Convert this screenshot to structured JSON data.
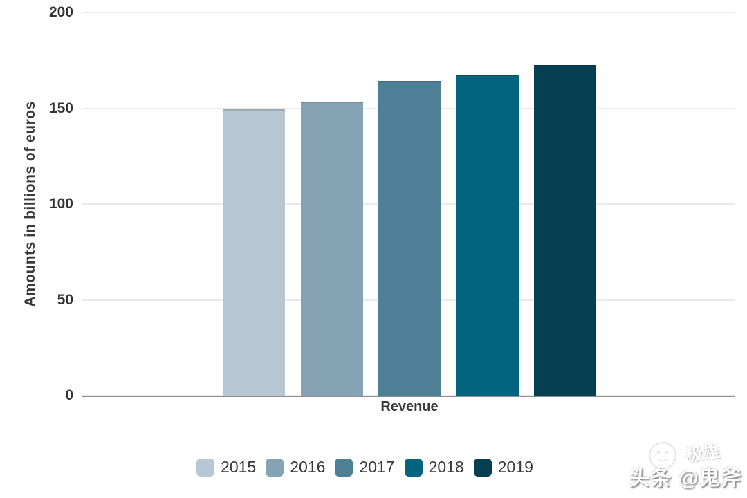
{
  "chart_data": {
    "type": "bar",
    "title": "",
    "xlabel": "Revenue",
    "ylabel": "Amounts in billions of euros",
    "ylim": [
      0,
      200
    ],
    "yticks": [
      0,
      50,
      100,
      150,
      200
    ],
    "grid": true,
    "legend_position": "bottom",
    "categories": [
      "Revenue"
    ],
    "series": [
      {
        "name": "2015",
        "value": 149.5,
        "color": "#b7c7d3"
      },
      {
        "name": "2016",
        "value": 153.3,
        "color": "#85a3b5"
      },
      {
        "name": "2017",
        "value": 164.3,
        "color": "#4d8096"
      },
      {
        "name": "2018",
        "value": 167.4,
        "color": "#02647f"
      },
      {
        "name": "2019",
        "value": 172.7,
        "color": "#053f51"
      }
    ]
  },
  "colors": {
    "axis_line": "#8f8f8f",
    "gridline": "#eaeaea",
    "text": "#3a3a3a"
  },
  "watermark": {
    "main_text": "头条 @鬼斧",
    "faint_text": "极雄"
  }
}
